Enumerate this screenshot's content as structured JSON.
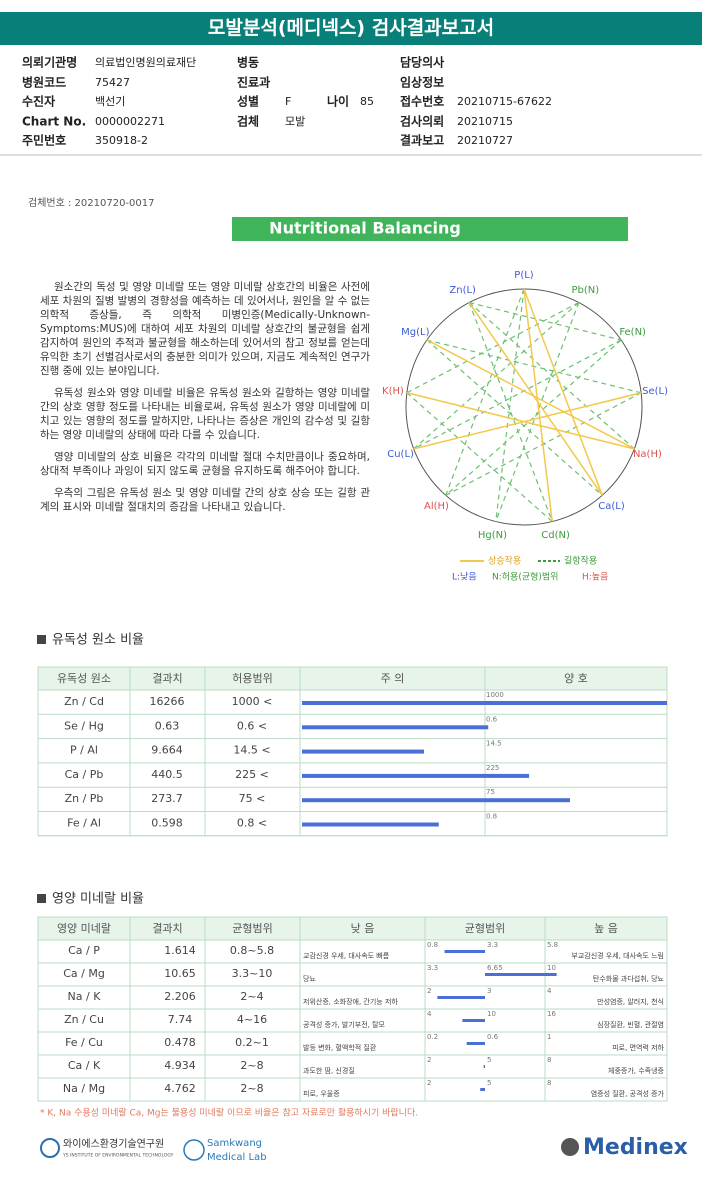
{
  "header": {
    "title": "모발분석(메디넥스) 검사결과보고서"
  },
  "info": [
    {
      "label": "의뢰기관명",
      "value": "의료법인명원의료재단"
    },
    {
      "label": "병동"
    },
    {
      "label": "담당의사"
    },
    {
      "label": "병원코드",
      "value": "75427"
    },
    {
      "label": "진료과"
    },
    {
      "label": "임상정보"
    },
    {
      "label": "수진자",
      "value": "백선기"
    },
    {
      "label": "성별",
      "value": "F"
    },
    {
      "label": "나이",
      "value": "85"
    },
    {
      "label": "접수번호",
      "value": "20210715-67622"
    },
    {
      "label": "Chart No.",
      "value": "0000002271"
    },
    {
      "label": "검체",
      "value": "모발"
    },
    {
      "label": "검사의뢰",
      "value": "20210715"
    },
    {
      "label": "주민번호",
      "value": "350918-2"
    },
    {
      "label": "결과보고",
      "value": "20210727"
    }
  ],
  "specimen": "검체번호 : 20210720-0017",
  "banner": "Nutritional Balancing",
  "paragraphs": [
    "원소간의 독성 및 영양 미네랄 또는 영양 미네랄 상호간의 비율은 사전에 세포 차원의 질병 발병의 경향성을 예측하는 데 있어서나, 원인을 알 수 없는 의학적 증상들, 즉 의학적 미병인증(Medically-Unknown-Symptoms:MUS)에 대하여 세포 차원의 미네랄 상호간의 불균형을 쉽게 감지하여 원인의 추적과 불균형을 해소하는데 있어서의 참고 정보를 얻는데 유익한 초기 선별검사로서의 충분한 의미가 있으며, 지금도 계속적인 연구가 진행 중에 있는 분야입니다.",
    "유독성 원소와 영양 미네랄 비율은 유독성 원소와 길항하는 영양 미네랄 간의 상호 영향 정도를 나타내는 비율로써, 유독성 원소가 영양 미네랄에 미치고 있는 영향의 정도를 말하지만, 나타나는 증상은 개인의 감수성 및 길항하는 영양 미네랄의 상태에 따라 다를 수 있습니다.",
    "영양 미네랄의 상호 비율은 각각의 미네랄 절대 수치만큼이나 중요하며, 상대적 부족이나 과잉이 되지 않도록 균형을 유지하도록 해주어야 합니다.",
    "우측의 그림은 유독성 원소 및 영양 미네랄 간의 상호 상승 또는 길항 관계의 표시와 미네랄 절대치의 증감을 나타내고 있습니다."
  ],
  "wheel": {
    "nodes": [
      {
        "label": "P(L)",
        "color": "#3b5bd6"
      },
      {
        "label": "Pb(N)",
        "color": "#3e9a3e"
      },
      {
        "label": "Fe(N)",
        "color": "#3e9a3e"
      },
      {
        "label": "Se(L)",
        "color": "#3b5bd6"
      },
      {
        "label": "Na(H)",
        "color": "#d9534f"
      },
      {
        "label": "Ca(L)",
        "color": "#3b5bd6"
      },
      {
        "label": "Cd(N)",
        "color": "#3e9a3e"
      },
      {
        "label": "Hg(N)",
        "color": "#3e9a3e"
      },
      {
        "label": "Al(H)",
        "color": "#d9534f"
      },
      {
        "label": "Cu(L)",
        "color": "#3b5bd6"
      },
      {
        "label": "K(H)",
        "color": "#d9534f"
      },
      {
        "label": "Mg(L)",
        "color": "#3b5bd6"
      },
      {
        "label": "Zn(L)",
        "color": "#3b5bd6"
      }
    ],
    "legend": {
      "synergy": "상승작용",
      "antagonism": "길항작용",
      "low": "L:낮음",
      "normal": "N:허용(균형)범위",
      "high": "H:높음"
    }
  },
  "toxic": {
    "title": "유독성 원소 비율",
    "headers": [
      "유독성 원소",
      "결과치",
      "허용범위",
      "주 의",
      "양 호"
    ],
    "rows": [
      {
        "name": "Zn / Cd",
        "value": "16266",
        "ratio": 16266,
        "limit": 1000,
        "limit_label": "1000 <"
      },
      {
        "name": "Se / Hg",
        "value": "0.63",
        "ratio": 0.63,
        "limit": 0.6,
        "limit_label": "0.6 <"
      },
      {
        "name": "P  / Al",
        "value": "9.664",
        "ratio": 9.664,
        "limit": 14.5,
        "limit_label": "14.5 <"
      },
      {
        "name": "Ca / Pb",
        "value": "440.5",
        "ratio": 440.5,
        "limit": 225,
        "limit_label": "225 <"
      },
      {
        "name": "Zn / Pb",
        "value": "273.7",
        "ratio": 273.7,
        "limit": 75,
        "limit_label": "75 <"
      },
      {
        "name": "Fe / Al",
        "value": "0.598",
        "ratio": 0.598,
        "limit": 0.8,
        "limit_label": "0.8 <"
      }
    ]
  },
  "mineral": {
    "title": "영양 미네랄 비율",
    "headers": [
      "영양 미네랄",
      "결과치",
      "균형범위",
      "낮 음",
      "균형범위",
      "높 음"
    ],
    "rows": [
      {
        "name": "Ca / P",
        "value": 1.614,
        "range_label": "0.8~5.8",
        "low": 0.8,
        "mid": 3.3,
        "high": 5.8,
        "low_text": "교감신경 우세, 대사속도 빠름",
        "high_text": "부교감신경 우세, 대사속도 느림"
      },
      {
        "name": "Ca / Mg",
        "value": 10.65,
        "range_label": "3.3~10",
        "low": 3.3,
        "mid": 6.65,
        "high": 10,
        "low_text": "당뇨",
        "high_text": "탄수화물 과다섭취, 당뇨"
      },
      {
        "name": "Na / K",
        "value": 2.206,
        "range_label": "2~4",
        "low": 2,
        "mid": 3,
        "high": 4,
        "low_text": "저위산증, 소화장애, 간기능 저하",
        "high_text": "만성염증, 알러지, 천식"
      },
      {
        "name": "Zn / Cu",
        "value": 7.74,
        "range_label": "4~16",
        "low": 4,
        "mid": 10,
        "high": 16,
        "low_text": "공격성 증가, 발기부전, 탈모",
        "high_text": "심장질환, 빈혈, 관절염"
      },
      {
        "name": "Fe / Cu",
        "value": 0.478,
        "range_label": "0.2~1",
        "low": 0.2,
        "mid": 0.6,
        "high": 1,
        "low_text": "발등 변화, 혈액학적 질환",
        "high_text": "피로, 면역력 저하"
      },
      {
        "name": "Ca / K",
        "value": 4.934,
        "range_label": "2~8",
        "low": 2,
        "mid": 5,
        "high": 8,
        "low_text": "과도한 땀, 신경질",
        "high_text": "체중증가, 수족냉증"
      },
      {
        "name": "Na / Mg",
        "value": 4.762,
        "range_label": "2~8",
        "low": 2,
        "mid": 5,
        "high": 8,
        "low_text": "피로, 우울증",
        "high_text": "염증성 질환, 공격성 증가"
      }
    ]
  },
  "footnote": "* K, Na 수용성 미네랄 Ca, Mg는 불용성 미네랄 이므로 비율은 참고 자료로만 활용하시기 바랍니다.",
  "logos": {
    "ys": "와이에스환경기술연구원",
    "ys_sub": "YS INSTITUTE OF ENVIRONMENTAL TECHNOLOGY",
    "sml1": "Samkwang",
    "sml2": "Medical Lab",
    "medinex": "Medinex"
  }
}
